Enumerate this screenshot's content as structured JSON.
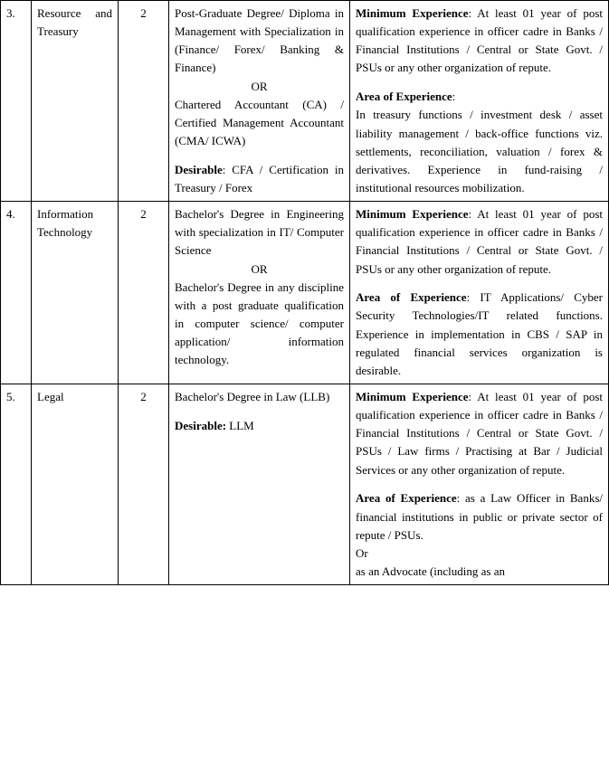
{
  "rows": [
    {
      "no": "3.",
      "dept": "Resource and Treasury",
      "count": "2",
      "qual_p1": "Post-Graduate Degree/ Diploma in Management with Specialization in (Finance/ Forex/ Banking & Finance)",
      "qual_or": "OR",
      "qual_p2": "Chartered Accountant (CA) / Certified Management Accountant (CMA/ ICWA)",
      "qual_desirable_label": "Desirable",
      "qual_desirable_text": ": CFA / Certification in Treasury / Forex",
      "exp_min_label": "Minimum Experience",
      "exp_min_text": ": At least 01 year of post qualification experience in officer cadre in Banks / Financial Institutions / Central or State Govt. / PSUs or any other organization of repute.",
      "exp_area_label": "Area of Experience",
      "exp_area_text": ":",
      "exp_area_body": "In treasury functions / investment desk / asset liability management / back-office functions viz. settlements, reconciliation, valuation / forex & derivatives. Experience in fund-raising / institutional resources mobilization."
    },
    {
      "no": "4.",
      "dept": "Information Technology",
      "count": "2",
      "qual_p1": "Bachelor's Degree in Engineering with specialization in IT/ Computer Science",
      "qual_or": "OR",
      "qual_p2": "Bachelor's Degree in any discipline with a post graduate qualification in computer science/ computer application/ information technology.",
      "exp_min_label": "Minimum Experience",
      "exp_min_text": ": At least 01 year of post qualification experience in officer cadre in Banks / Financial Institutions / Central or State Govt. / PSUs or any other organization of repute.",
      "exp_area_label": "Area of Experience",
      "exp_area_text": ": IT Applications/ Cyber Security Technologies/IT related functions. Experience in implementation in CBS / SAP in regulated financial services organization is desirable."
    },
    {
      "no": "5.",
      "dept": "Legal",
      "count": "2",
      "qual_p1": "Bachelor's Degree in Law (LLB)",
      "qual_desirable_label": "Desirable:",
      "qual_desirable_text": " LLM",
      "exp_min_label": "Minimum Experience",
      "exp_min_text": ": At least 01 year of post qualification experience in officer cadre in Banks / Financial Institutions / Central or State Govt. / PSUs / Law firms / Practising at Bar / Judicial Services or any other organization of repute.",
      "exp_area_label": "Area of Experience",
      "exp_area_text": ": as a Law Officer in Banks/ financial institutions in public or private sector of repute / PSUs.",
      "exp_area_or": "Or",
      "exp_area_body2": "as an Advocate (including as an"
    }
  ]
}
